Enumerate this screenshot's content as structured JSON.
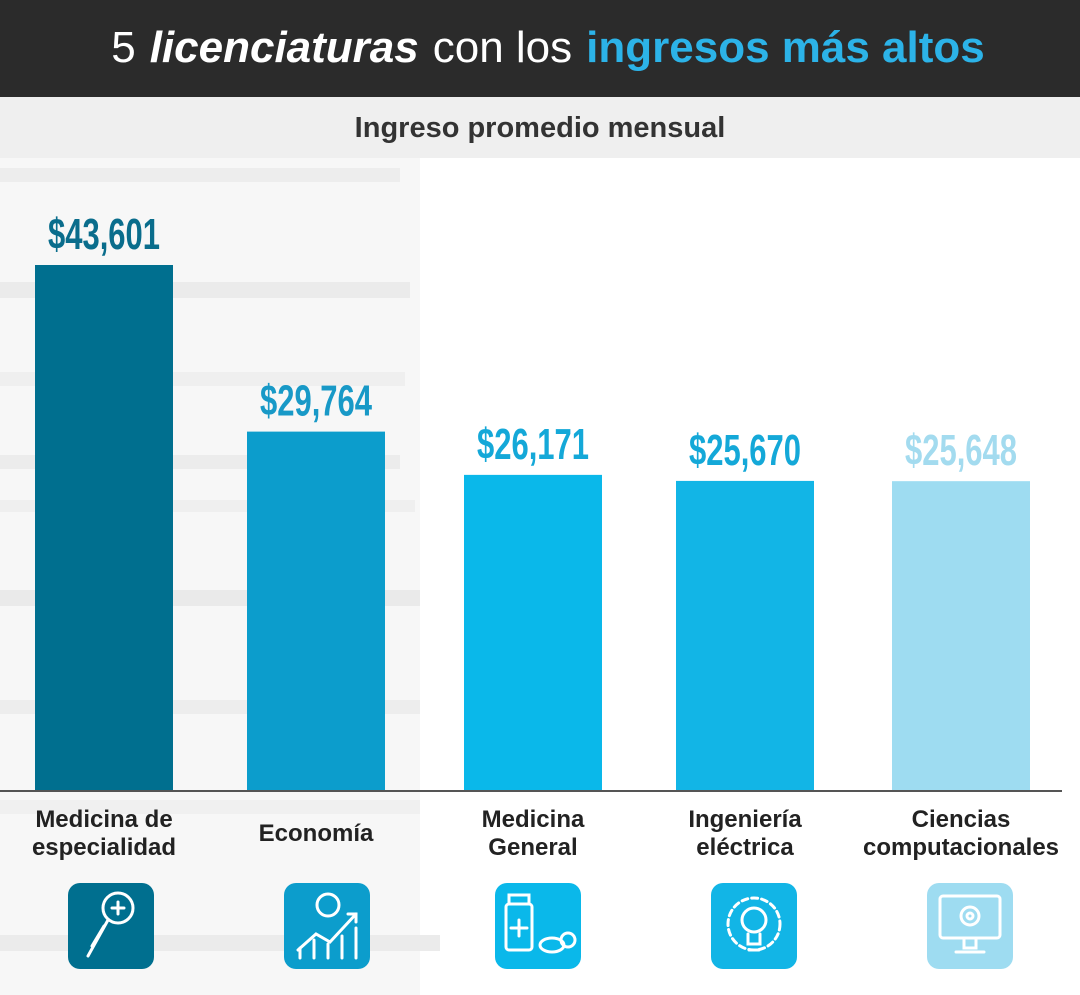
{
  "chart_data": {
    "type": "bar",
    "title": [
      "5",
      "licenciaturas",
      "con los",
      "ingresos más altos"
    ],
    "subtitle": "Ingreso promedio mensual",
    "categories": [
      "Medicina de\nespecialidad",
      "Economía",
      "Medicina\nGeneral",
      "Ingeniería\neléctrica",
      "Ciencias\ncomputacionales"
    ],
    "values": [
      43601,
      29764,
      26171,
      25670,
      25648
    ],
    "value_labels": [
      "$43,601",
      "$29,764",
      "$26,171",
      "$25,670",
      "$25,648"
    ],
    "colors": [
      "#006f8f",
      "#0c9dcc",
      "#0ab8ea",
      "#12b5e6",
      "#9edcf1"
    ],
    "label_colors": [
      "#0a6d8c",
      "#1899c7",
      "#14a8d8",
      "#14a8d8",
      "#a3dbef"
    ]
  }
}
